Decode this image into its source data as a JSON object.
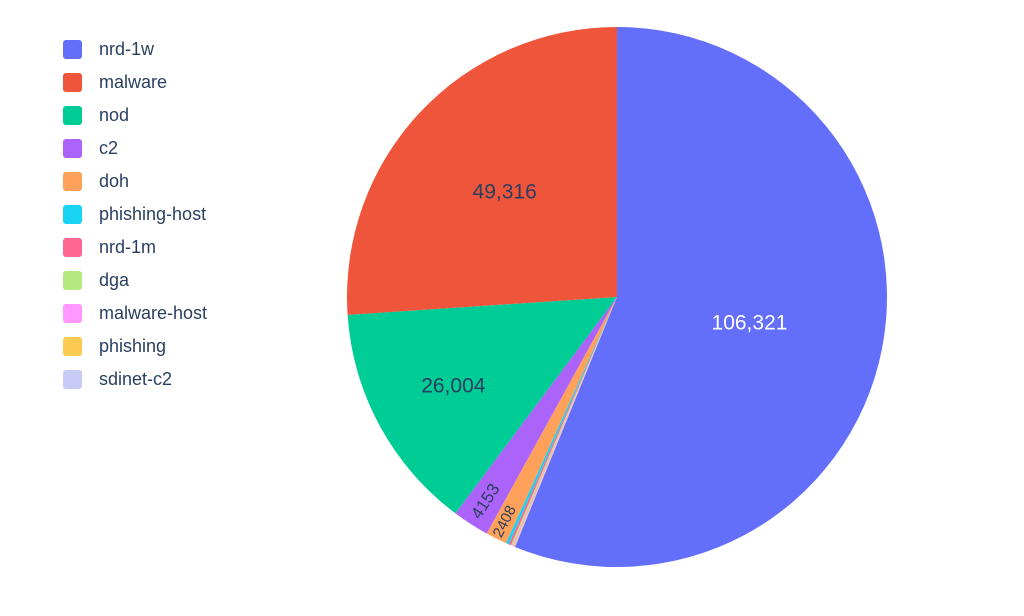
{
  "chart_data": {
    "type": "pie",
    "title": "",
    "legend_position": "top-left",
    "rotation_deg": 0,
    "largest_slice_direction": "clockwise-from-top",
    "sort_order": "descending",
    "slices": [
      {
        "label": "nrd-1w",
        "value": 106321,
        "display": "106,321",
        "color": "#636EFA",
        "text_color": "#ffffff",
        "label_r": 0.5,
        "radial_text": false,
        "font_px": 21,
        "estimated": false
      },
      {
        "label": "malware",
        "value": 49316,
        "display": "49,316",
        "color": "#EF553B",
        "text_color": "#2a3f5f",
        "label_r": 0.57,
        "radial_text": false,
        "font_px": 21,
        "estimated": false
      },
      {
        "label": "nod",
        "value": 26004,
        "display": "26,004",
        "color": "#00CC96",
        "text_color": "#2a3f5f",
        "label_r": 0.69,
        "radial_text": false,
        "font_px": 21,
        "estimated": false
      },
      {
        "label": "c2",
        "value": 4153,
        "display": "4153",
        "color": "#AB63FA",
        "text_color": "#2a3f5f",
        "label_r": 0.9,
        "radial_text": true,
        "font_px": 17,
        "estimated": false
      },
      {
        "label": "doh",
        "value": 2408,
        "display": "2408",
        "color": "#FFA15A",
        "text_color": "#2a3f5f",
        "label_r": 0.93,
        "radial_text": true,
        "font_px": 15,
        "estimated": false
      },
      {
        "label": "phishing-host",
        "value": 350,
        "display": "",
        "color": "#19D3F3",
        "estimated": true
      },
      {
        "label": "nrd-1m",
        "value": 250,
        "display": "",
        "color": "#FF6692",
        "estimated": true
      },
      {
        "label": "dga",
        "value": 170,
        "display": "",
        "color": "#B6E880",
        "estimated": true
      },
      {
        "label": "malware-host",
        "value": 130,
        "display": "",
        "color": "#FF97FF",
        "estimated": true
      },
      {
        "label": "phishing",
        "value": 110,
        "display": "",
        "color": "#FECB52",
        "estimated": true
      },
      {
        "label": "sdinet-c2",
        "value": 80,
        "display": "",
        "color": "#C8CBF5",
        "estimated": true
      }
    ]
  }
}
